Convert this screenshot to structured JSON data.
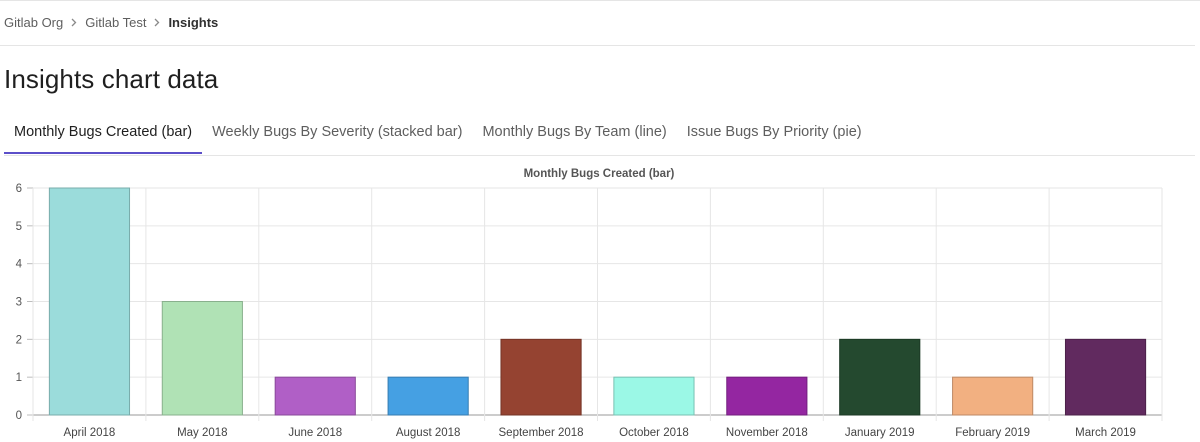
{
  "breadcrumb": {
    "items": [
      "Gitlab Org",
      "Gitlab Test",
      "Insights"
    ]
  },
  "page": {
    "title": "Insights chart data"
  },
  "tabs": [
    {
      "label": "Monthly Bugs Created (bar)",
      "active": true
    },
    {
      "label": "Weekly Bugs By Severity (stacked bar)",
      "active": false
    },
    {
      "label": "Monthly Bugs By Team (line)",
      "active": false
    },
    {
      "label": "Issue Bugs By Priority (pie)",
      "active": false
    }
  ],
  "icons": {
    "breadcrumb_separator": "chevron-right-icon"
  },
  "colors": {
    "active_tab_indicator": "#5c4fc9"
  },
  "chart_data": {
    "type": "bar",
    "title": "Monthly Bugs Created (bar)",
    "categories": [
      "April 2018",
      "May 2018",
      "June 2018",
      "August 2018",
      "September 2018",
      "October 2018",
      "November 2018",
      "January 2019",
      "February 2019",
      "March 2019"
    ],
    "values": [
      6,
      3,
      1,
      1,
      2,
      1,
      1,
      2,
      1,
      2
    ],
    "colors": [
      "#9bdcdb",
      "#b0e2b5",
      "#b05fc6",
      "#45a0e3",
      "#954331",
      "#9bf8e6",
      "#9426a1",
      "#24492f",
      "#f2b081",
      "#612a5f"
    ],
    "ylim": [
      0,
      6
    ],
    "yticks": [
      0,
      1,
      2,
      3,
      4,
      5,
      6
    ],
    "grid": true,
    "legend": "none"
  }
}
